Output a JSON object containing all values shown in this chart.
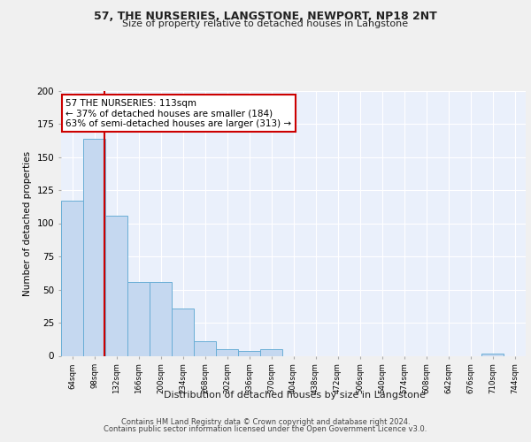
{
  "title_line1": "57, THE NURSERIES, LANGSTONE, NEWPORT, NP18 2NT",
  "title_line2": "Size of property relative to detached houses in Langstone",
  "xlabel": "Distribution of detached houses by size in Langstone",
  "ylabel": "Number of detached properties",
  "footer_line1": "Contains HM Land Registry data © Crown copyright and database right 2024.",
  "footer_line2": "Contains public sector information licensed under the Open Government Licence v3.0.",
  "annotation_line1": "57 THE NURSERIES: 113sqm",
  "annotation_line2": "← 37% of detached houses are smaller (184)",
  "annotation_line3": "63% of semi-detached houses are larger (313) →",
  "bin_labels": [
    "64sqm",
    "98sqm",
    "132sqm",
    "166sqm",
    "200sqm",
    "234sqm",
    "268sqm",
    "302sqm",
    "336sqm",
    "370sqm",
    "404sqm",
    "438sqm",
    "472sqm",
    "506sqm",
    "540sqm",
    "574sqm",
    "608sqm",
    "642sqm",
    "676sqm",
    "710sqm",
    "744sqm"
  ],
  "bar_values": [
    117,
    164,
    106,
    56,
    56,
    36,
    11,
    5,
    4,
    5,
    0,
    0,
    0,
    0,
    0,
    0,
    0,
    0,
    0,
    2,
    0
  ],
  "bar_color": "#c5d8f0",
  "bar_edge_color": "#6aaed6",
  "red_line_x": 1.44,
  "ylim": [
    0,
    200
  ],
  "background_color": "#eaf0fb",
  "grid_color": "#ffffff",
  "red_line_color": "#cc0000",
  "fig_bg": "#f0f0f0"
}
